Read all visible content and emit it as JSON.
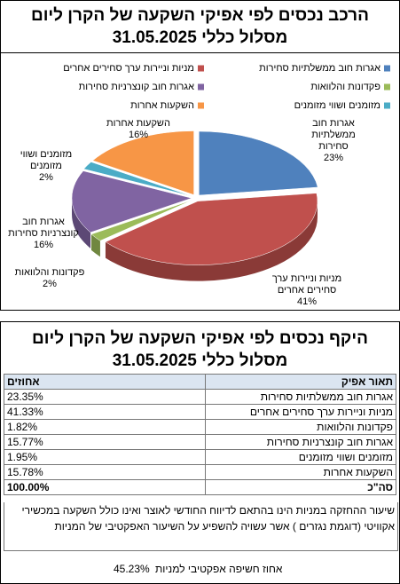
{
  "header": {
    "title_line1": "הרכב נכסים לפי אפיקי השקעה של הקרן ליום",
    "title_line2": "31.05.2025 מסלול כללי"
  },
  "chart_data": {
    "type": "pie",
    "categories": [
      "אגרות חוב ממשלתיות סחירות",
      "מניות וניירות ערך סחירים אחרים",
      "פקדונות והלוואות",
      "אגרות חוב קונצרניות סחירות",
      "מזומנים ושווי מזומנים",
      "השקעות אחרות"
    ],
    "values": [
      23,
      41,
      2,
      16,
      2,
      16
    ],
    "value_labels": [
      "23%",
      "41%",
      "2%",
      "16%",
      "2%",
      "16%"
    ],
    "colors": [
      "#4f81bd",
      "#c0504d",
      "#9bbb59",
      "#8064a2",
      "#4bacc6",
      "#f79646"
    ],
    "legend": "top"
  },
  "table": {
    "title_line1": "היקף נכסים לפי אפיקי השקעה של הקרן ליום",
    "title_line2": "31.05.2025 מסלול כללי",
    "columns": [
      "תאור אפיק",
      "אחוזים"
    ],
    "rows": [
      [
        "אגרות חוב ממשלתיות סחירות",
        "23.35%"
      ],
      [
        "מניות וניירות ערך סחירים אחרים",
        "41.33%"
      ],
      [
        "פקדונות והלוואות",
        "1.82%"
      ],
      [
        "אגרות חוב קונצרניות סחירות",
        "15.77%"
      ],
      [
        "מזומנים ושווי מזומנים",
        "1.95%"
      ],
      [
        "השקעות אחרות",
        "15.78%"
      ]
    ],
    "total": [
      "סה\"כ",
      "100.00%"
    ]
  },
  "note": "שיעור ההחזקה במניות הינו בהתאם לדיווח החודשי לאוצר ואינו כולל השקעה במכשירי אקוויטי (דוגמת נגזרים ) אשר עשויה להשפיע על השיעור האפקטיבי של המניות",
  "exposure": {
    "label": "אחוז חשיפה אפקטיבי למניות",
    "value": "45.23%"
  }
}
